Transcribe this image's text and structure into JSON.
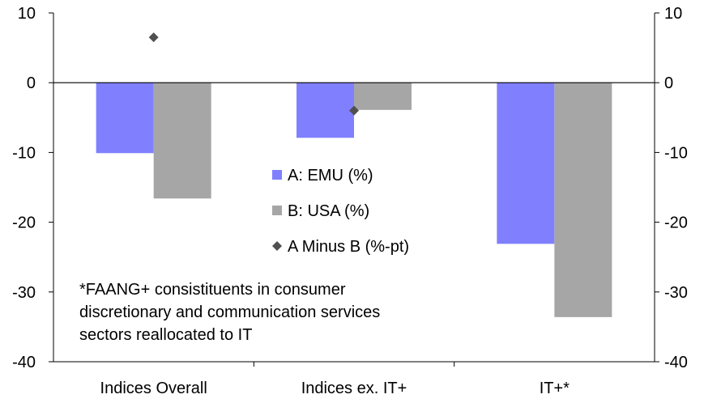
{
  "chart_data": {
    "type": "bar",
    "categories": [
      "Indices Overall",
      "Indices ex. IT+",
      "IT+*"
    ],
    "series": [
      {
        "name": "A: EMU (%)",
        "kind": "bar",
        "color": "#8080ff",
        "values": [
          -10.1,
          -7.9,
          -23.1
        ]
      },
      {
        "name": "B: USA (%)",
        "kind": "bar",
        "color": "#a6a6a6",
        "values": [
          -16.6,
          -3.9,
          -33.6
        ]
      },
      {
        "name": "A Minus B (%-pt)",
        "kind": "marker",
        "marker": "diamond",
        "color": "#505050",
        "values": [
          6.5,
          -4.0,
          null
        ]
      }
    ],
    "ylim": [
      -40,
      10
    ],
    "yticks": [
      10,
      0,
      -10,
      -20,
      -30,
      -40
    ],
    "ytick_labels": [
      "10",
      "0",
      "-10",
      "-20",
      "-30",
      "-40"
    ],
    "secondary_axis": true,
    "grid": false,
    "legend_position": "center",
    "note_lines": [
      "*FAANG+ consistituents in consumer",
      "discretionary and communication services",
      "sectors reallocated to IT"
    ]
  }
}
